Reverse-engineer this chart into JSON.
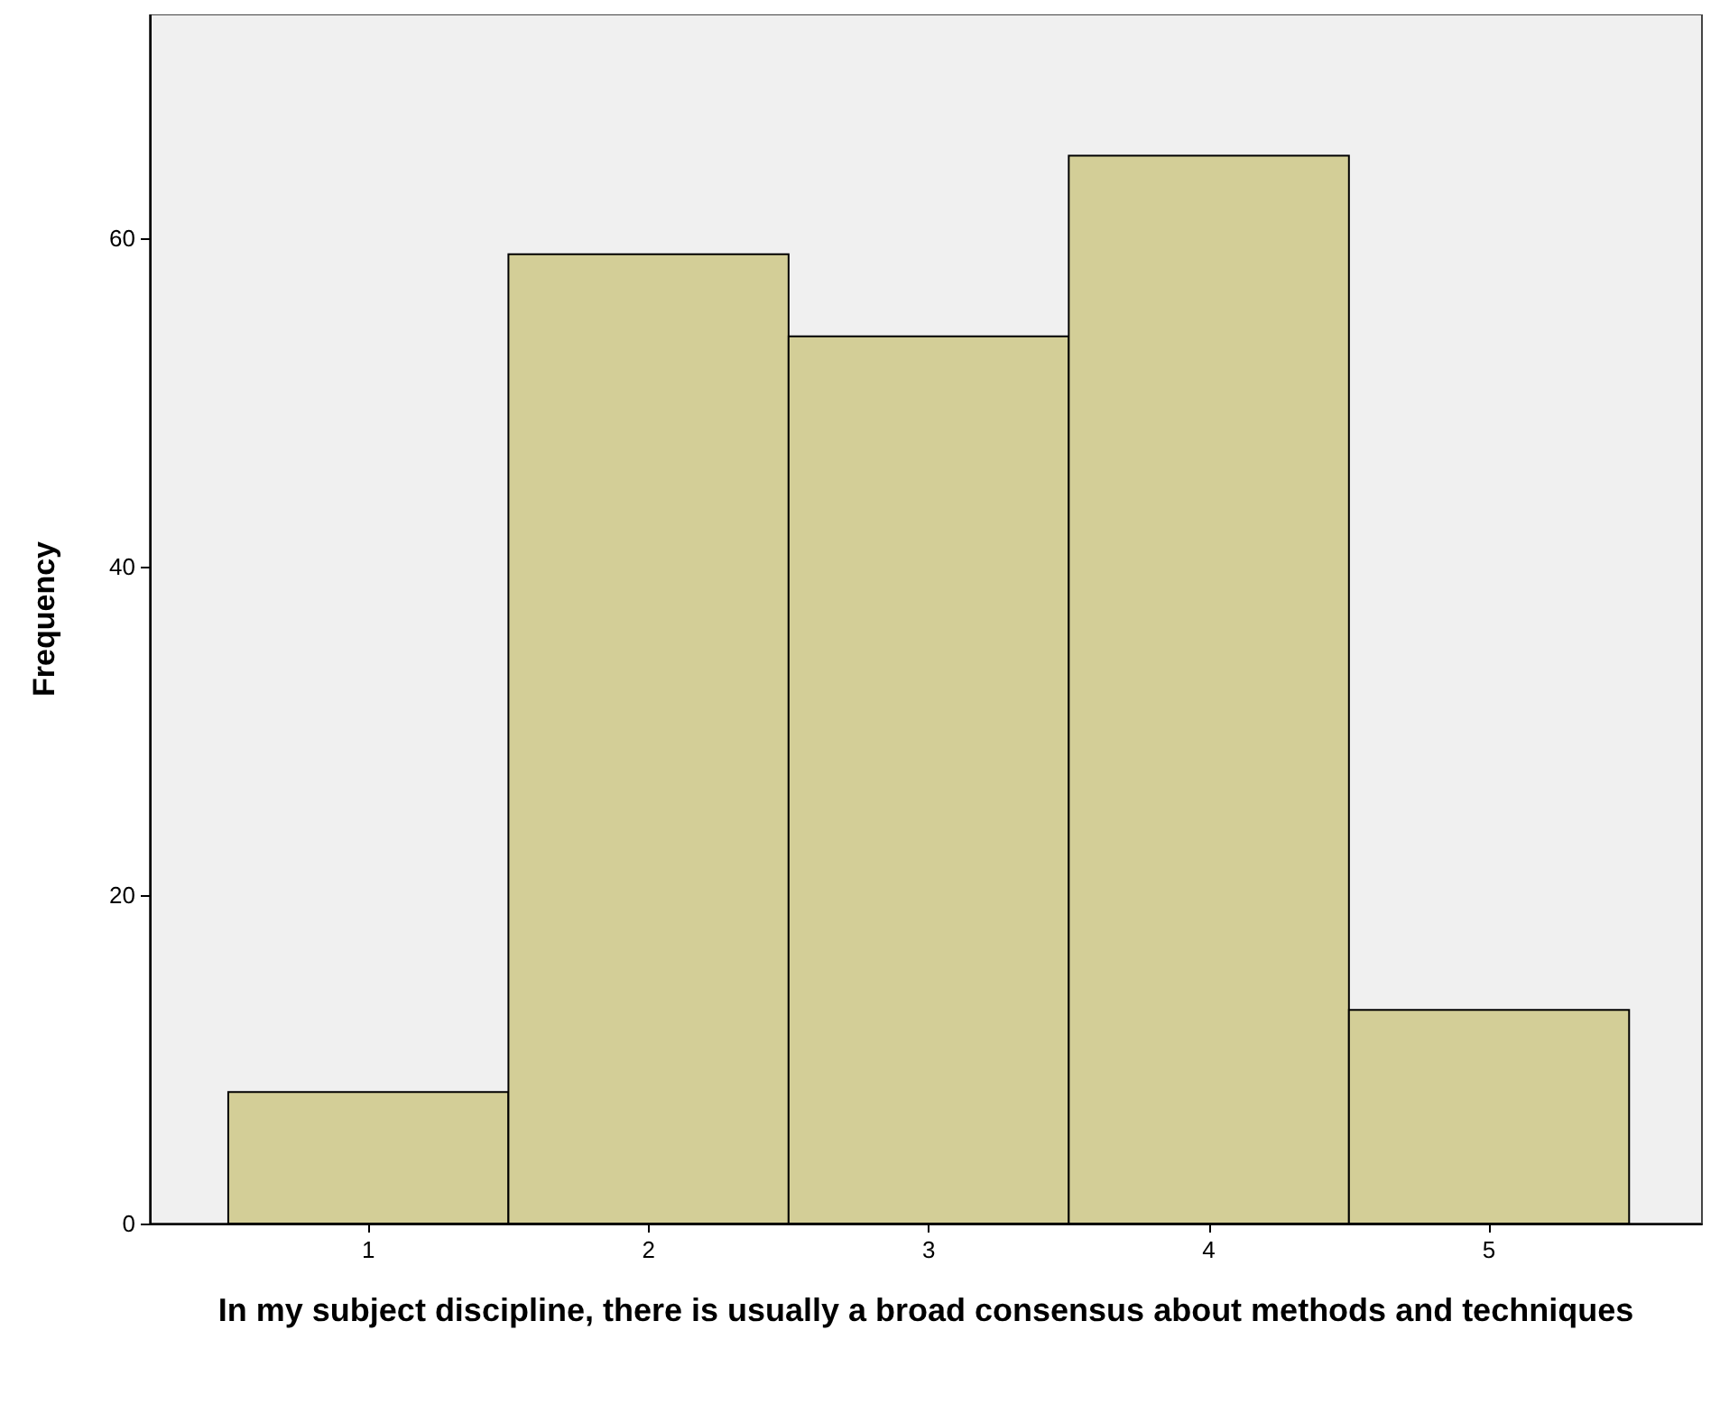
{
  "chart_data": {
    "type": "histogram",
    "xlabel": "In my subject discipline, there is usually a broad consensus about methods and techniques",
    "ylabel": "Frequency",
    "bins": [
      0.5,
      1.5,
      2.5,
      3.5,
      4.5,
      5.5
    ],
    "values": [
      8,
      59,
      54,
      65,
      13
    ],
    "color": "#d3ce97",
    "xlim": [
      0.22,
      5.76
    ],
    "ylim": [
      0,
      73.6
    ],
    "xticks": [
      1,
      2,
      3,
      4,
      5
    ],
    "yticks": [
      0,
      20,
      40,
      60
    ],
    "grid": false
  }
}
